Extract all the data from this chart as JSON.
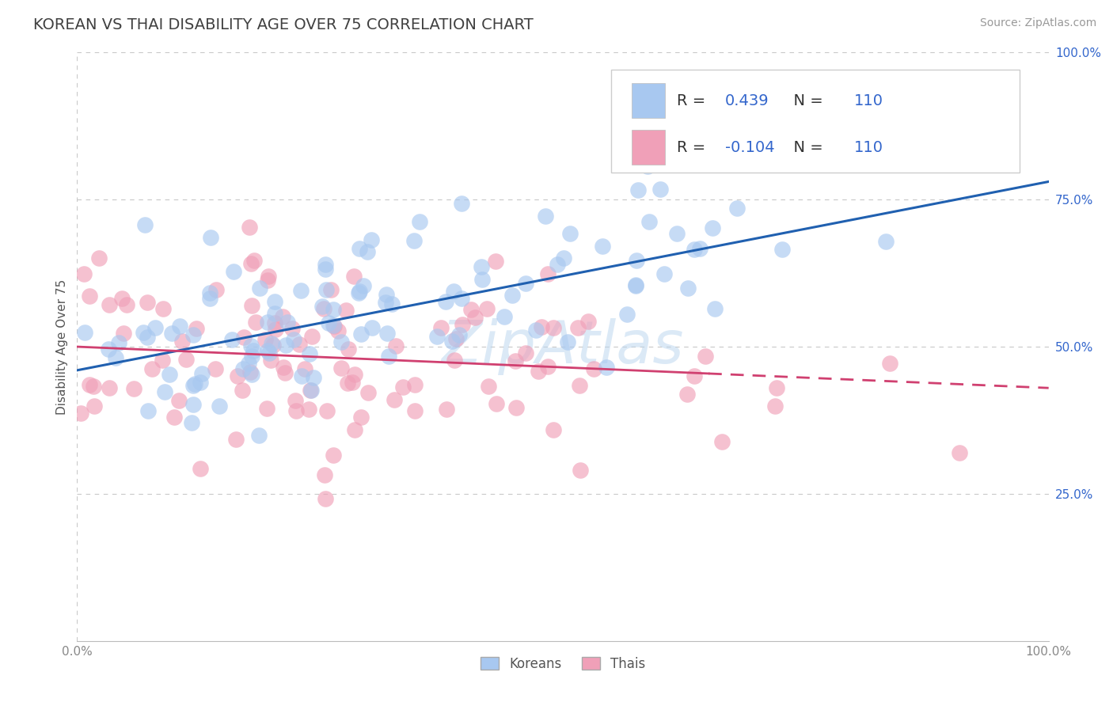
{
  "title": "KOREAN VS THAI DISABILITY AGE OVER 75 CORRELATION CHART",
  "source": "Source: ZipAtlas.com",
  "ylabel": "Disability Age Over 75",
  "korean_R": 0.439,
  "thai_R": -0.104,
  "N": 110,
  "korean_color": "#A8C8F0",
  "thai_color": "#F0A0B8",
  "korean_line_color": "#2060B0",
  "thai_line_color": "#D04070",
  "background_color": "#FFFFFF",
  "grid_color": "#C8C8C8",
  "title_color": "#404040",
  "legend_R_color": "#3366CC",
  "watermark": "ZipAtlas",
  "watermark_color": "#B8D4EE",
  "title_fontsize": 14,
  "axis_label_fontsize": 11,
  "tick_fontsize": 11,
  "source_fontsize": 10,
  "korean_slope": 0.32,
  "korean_intercept": 0.46,
  "thai_slope": -0.07,
  "thai_intercept": 0.5,
  "seed": 17
}
